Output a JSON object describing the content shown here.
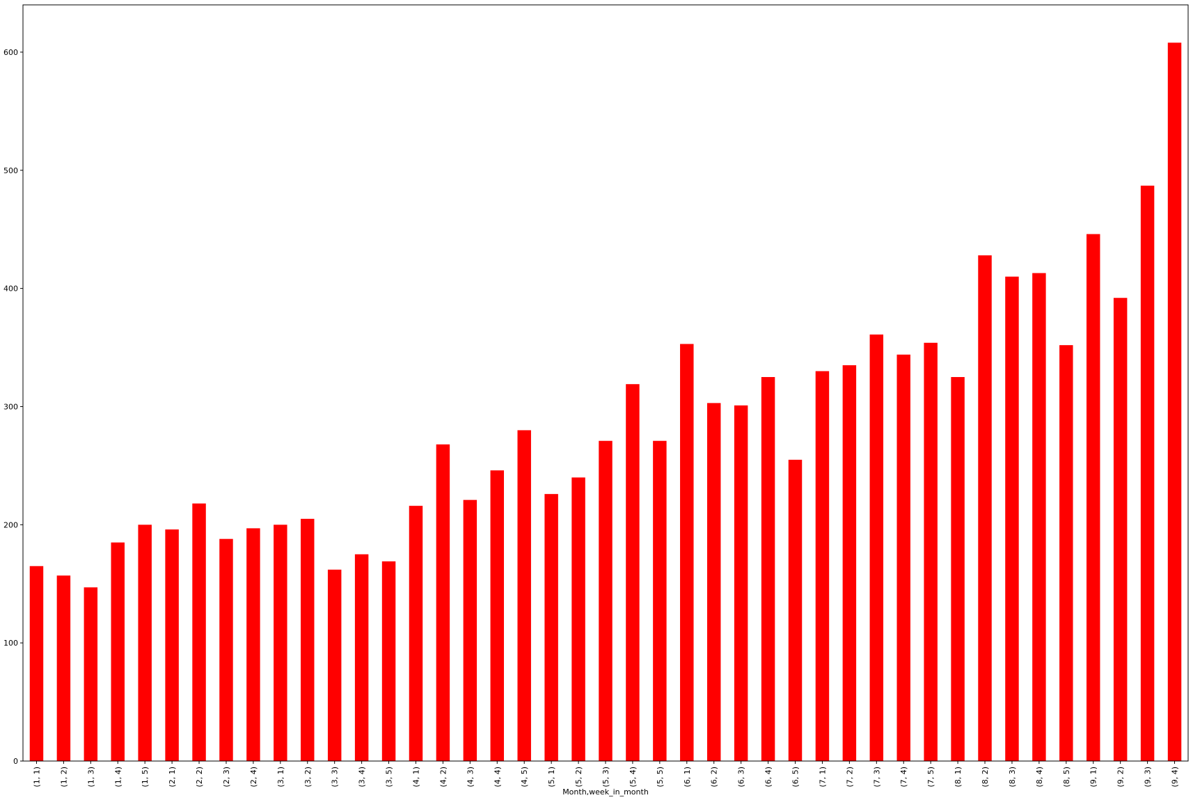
{
  "chart_data": {
    "type": "bar",
    "title": "",
    "xlabel": "Month,week_in_month",
    "ylabel": "",
    "ylim": [
      0,
      640
    ],
    "yticks": [
      0,
      100,
      200,
      300,
      400,
      500,
      600
    ],
    "grid": false,
    "legend": "none",
    "bar_color": "#ff0000",
    "categories": [
      "(1, 1)",
      "(1, 2)",
      "(1, 3)",
      "(1, 4)",
      "(1, 5)",
      "(2, 1)",
      "(2, 2)",
      "(2, 3)",
      "(2, 4)",
      "(3, 1)",
      "(3, 2)",
      "(3, 3)",
      "(3, 4)",
      "(3, 5)",
      "(4, 1)",
      "(4, 2)",
      "(4, 3)",
      "(4, 4)",
      "(4, 5)",
      "(5, 1)",
      "(5, 2)",
      "(5, 3)",
      "(5, 4)",
      "(5, 5)",
      "(6, 1)",
      "(6, 2)",
      "(6, 3)",
      "(6, 4)",
      "(6, 5)",
      "(7, 1)",
      "(7, 2)",
      "(7, 3)",
      "(7, 4)",
      "(7, 5)",
      "(8, 1)",
      "(8, 2)",
      "(8, 3)",
      "(8, 4)",
      "(8, 5)",
      "(9, 1)",
      "(9, 2)",
      "(9, 3)",
      "(9, 4)"
    ],
    "values": [
      165,
      157,
      147,
      185,
      200,
      196,
      218,
      188,
      197,
      200,
      205,
      162,
      175,
      169,
      216,
      268,
      221,
      246,
      280,
      226,
      240,
      271,
      319,
      271,
      353,
      303,
      301,
      325,
      255,
      330,
      335,
      361,
      344,
      354,
      325,
      428,
      410,
      413,
      352,
      446,
      392,
      487,
      608
    ]
  }
}
